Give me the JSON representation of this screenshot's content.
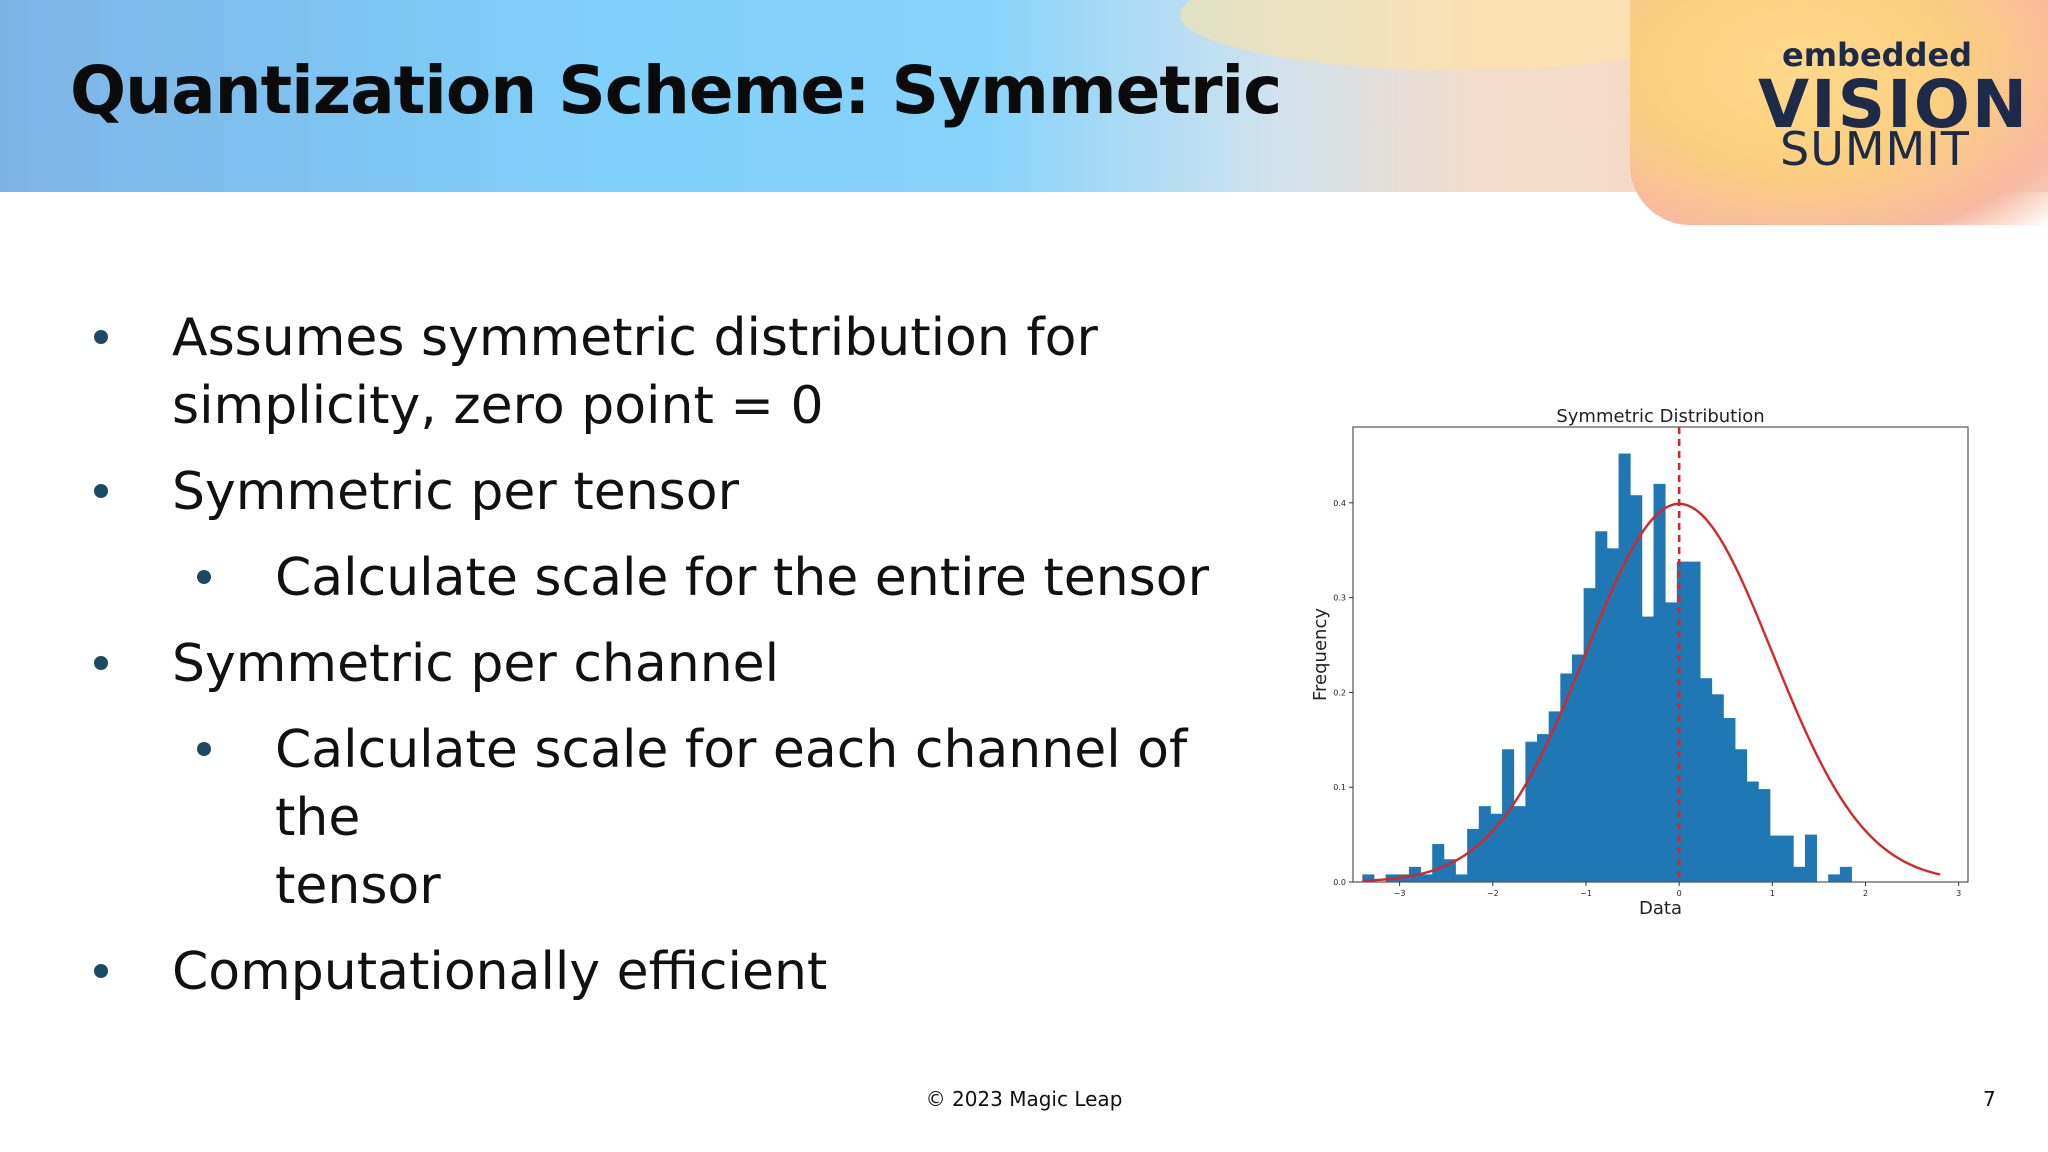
{
  "slide": {
    "title": "Quantization Scheme: Symmetric",
    "logo": {
      "line1": "embedded",
      "line2": "VISION",
      "line3": "SUMMIT"
    },
    "bullets": [
      {
        "level": 1,
        "text": "Assumes symmetric distribution for\nsimplicity, zero point = 0"
      },
      {
        "level": 1,
        "text": "Symmetric per tensor"
      },
      {
        "level": 2,
        "text": "Calculate scale for the entire tensor"
      },
      {
        "level": 1,
        "text": "Symmetric per channel"
      },
      {
        "level": 2,
        "text": "Calculate scale for each channel of the\ntensor"
      },
      {
        "level": 1,
        "text": "Computationally efficient"
      }
    ],
    "footer": "© 2023 Magic Leap",
    "page_number": "7"
  },
  "colors": {
    "bar": "#1f77b4",
    "curve": "#d62728",
    "bullet": "#1c4a63",
    "title": "#0b0b0b"
  },
  "chart_data": {
    "type": "bar",
    "title": "Symmetric Distribution",
    "xlabel": "Data",
    "ylabel": "Frequency",
    "xlim": [
      -3.5,
      3.1
    ],
    "ylim": [
      0,
      0.48
    ],
    "xticks": [
      -3,
      -2,
      -1,
      0,
      1,
      2,
      3
    ],
    "xtick_labels": [
      "−3",
      "−2",
      "−1",
      "0",
      "1",
      "2",
      "3"
    ],
    "yticks": [
      0.0,
      0.1,
      0.2,
      0.3,
      0.4
    ],
    "ytick_labels": [
      "0.0",
      "0.1",
      "0.2",
      "0.3",
      "0.4"
    ],
    "bin_start": -3.4,
    "bin_width": 0.125,
    "values": [
      0.008,
      0.0,
      0.008,
      0.008,
      0.016,
      0.008,
      0.04,
      0.024,
      0.008,
      0.056,
      0.08,
      0.072,
      0.14,
      0.08,
      0.148,
      0.156,
      0.18,
      0.22,
      0.24,
      0.31,
      0.37,
      0.352,
      0.452,
      0.408,
      0.28,
      0.42,
      0.295,
      0.338,
      0.338,
      0.215,
      0.198,
      0.173,
      0.14,
      0.106,
      0.098,
      0.049,
      0.049,
      0.016,
      0.05,
      0.0,
      0.008,
      0.016
    ],
    "reference_line": {
      "x": 0,
      "style": "dashed"
    },
    "fit_curve": {
      "type": "normal",
      "mean": 0,
      "std": 1
    }
  }
}
